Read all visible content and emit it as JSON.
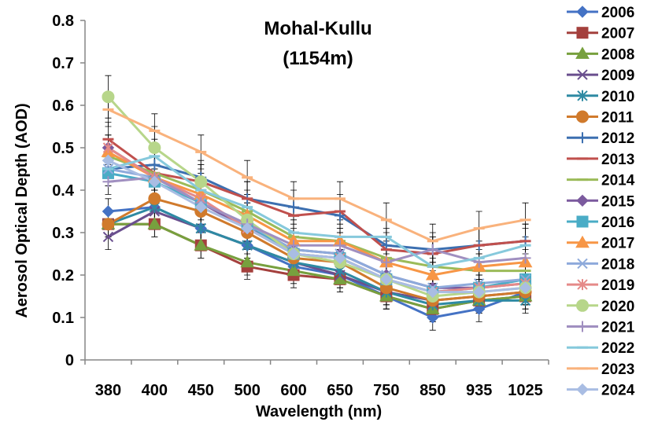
{
  "chart_data": {
    "type": "line",
    "title": "Mohal-Kullu",
    "subtitle": "(1154m)",
    "xlabel": "Wavelength (nm)",
    "ylabel": "Aerosol Optical Depth (AOD)",
    "categories": [
      "380",
      "400",
      "450",
      "500",
      "600",
      "650",
      "750",
      "850",
      "935",
      "1025"
    ],
    "ylim": [
      0,
      0.8
    ],
    "yticks": [
      "0",
      "0.1",
      "0.2",
      "0.3",
      "0.4",
      "0.5",
      "0.6",
      "0.7",
      "0.8"
    ],
    "grid": false,
    "legend_position": "right",
    "error_bars": true,
    "series": [
      {
        "name": "2006",
        "color": "#4472c4",
        "marker": "diamond",
        "values": [
          0.35,
          0.36,
          0.31,
          0.27,
          0.22,
          0.2,
          0.15,
          0.1,
          0.12,
          0.16
        ],
        "errors": [
          0.03,
          0.03,
          0.03,
          0.03,
          0.03,
          0.03,
          0.03,
          0.03,
          0.03,
          0.03
        ]
      },
      {
        "name": "2007",
        "color": "#a4403d",
        "marker": "square",
        "values": [
          0.32,
          0.32,
          0.27,
          0.22,
          0.2,
          0.19,
          0.15,
          0.12,
          0.14,
          0.15
        ],
        "errors": [
          0.03,
          0.03,
          0.03,
          0.03,
          0.03,
          0.03,
          0.03,
          0.03,
          0.03,
          0.03
        ]
      },
      {
        "name": "2008",
        "color": "#77a03e",
        "marker": "triangle",
        "values": [
          0.32,
          0.32,
          0.27,
          0.23,
          0.21,
          0.19,
          0.15,
          0.12,
          0.14,
          0.15
        ],
        "errors": [
          0.03,
          0.03,
          0.03,
          0.03,
          0.03,
          0.03,
          0.03,
          0.03,
          0.03,
          0.03
        ]
      },
      {
        "name": "2009",
        "color": "#6a4f8e",
        "marker": "x",
        "values": [
          0.29,
          0.35,
          0.31,
          0.27,
          0.23,
          0.2,
          0.16,
          0.14,
          0.15,
          0.16
        ],
        "errors": [
          0.03,
          0.03,
          0.03,
          0.03,
          0.03,
          0.03,
          0.03,
          0.03,
          0.03,
          0.03
        ]
      },
      {
        "name": "2010",
        "color": "#2e8aa3",
        "marker": "asterisk",
        "values": [
          0.32,
          0.36,
          0.31,
          0.27,
          0.23,
          0.21,
          0.16,
          0.13,
          0.14,
          0.14
        ],
        "errors": [
          0.03,
          0.03,
          0.03,
          0.03,
          0.03,
          0.03,
          0.03,
          0.03,
          0.03,
          0.03
        ]
      },
      {
        "name": "2011",
        "color": "#d07a2c",
        "marker": "circle",
        "values": [
          0.32,
          0.38,
          0.35,
          0.3,
          0.24,
          0.23,
          0.17,
          0.14,
          0.15,
          0.16
        ],
        "errors": [
          0.03,
          0.03,
          0.03,
          0.03,
          0.03,
          0.03,
          0.03,
          0.03,
          0.03,
          0.03
        ]
      },
      {
        "name": "2012",
        "color": "#3c6fb0",
        "marker": "plus",
        "values": [
          0.45,
          0.46,
          0.43,
          0.38,
          0.36,
          0.34,
          0.27,
          0.26,
          0.27,
          0.28
        ],
        "errors": [
          0.04,
          0.04,
          0.04,
          0.04,
          0.04,
          0.04,
          0.04,
          0.04,
          0.04,
          0.04
        ]
      },
      {
        "name": "2013",
        "color": "#c0504d",
        "marker": "dash",
        "values": [
          0.52,
          0.44,
          0.42,
          0.38,
          0.34,
          0.35,
          0.26,
          0.25,
          0.27,
          0.28
        ],
        "errors": [
          0.04,
          0.04,
          0.04,
          0.04,
          0.04,
          0.04,
          0.04,
          0.04,
          0.04,
          0.04
        ]
      },
      {
        "name": "2014",
        "color": "#9bbb59",
        "marker": "dash",
        "values": [
          0.48,
          0.44,
          0.4,
          0.35,
          0.29,
          0.28,
          0.24,
          0.22,
          0.21,
          0.21
        ],
        "errors": [
          0.04,
          0.04,
          0.04,
          0.04,
          0.04,
          0.04,
          0.04,
          0.04,
          0.04,
          0.04
        ]
      },
      {
        "name": "2015",
        "color": "#7b5a9e",
        "marker": "diamond",
        "values": [
          0.5,
          0.43,
          0.37,
          0.31,
          0.26,
          0.25,
          0.2,
          0.17,
          0.17,
          0.18
        ],
        "errors": [
          0.03,
          0.03,
          0.03,
          0.03,
          0.03,
          0.03,
          0.03,
          0.03,
          0.03,
          0.03
        ]
      },
      {
        "name": "2016",
        "color": "#4aacc6",
        "marker": "square",
        "values": [
          0.44,
          0.42,
          0.37,
          0.32,
          0.25,
          0.24,
          0.19,
          0.16,
          0.17,
          0.19
        ],
        "errors": [
          0.03,
          0.03,
          0.03,
          0.03,
          0.03,
          0.03,
          0.03,
          0.03,
          0.03,
          0.03
        ]
      },
      {
        "name": "2017",
        "color": "#f79646",
        "marker": "triangle",
        "values": [
          0.49,
          0.43,
          0.39,
          0.34,
          0.28,
          0.28,
          0.23,
          0.2,
          0.22,
          0.23
        ],
        "errors": [
          0.03,
          0.03,
          0.03,
          0.03,
          0.03,
          0.03,
          0.03,
          0.03,
          0.03,
          0.03
        ]
      },
      {
        "name": "2018",
        "color": "#8eaadb",
        "marker": "x",
        "values": [
          0.45,
          0.43,
          0.37,
          0.32,
          0.26,
          0.25,
          0.2,
          0.17,
          0.18,
          0.19
        ],
        "errors": [
          0.03,
          0.03,
          0.03,
          0.03,
          0.03,
          0.03,
          0.03,
          0.03,
          0.03,
          0.03
        ]
      },
      {
        "name": "2019",
        "color": "#e58a89",
        "marker": "asterisk",
        "values": [
          0.5,
          0.43,
          0.38,
          0.31,
          0.25,
          0.24,
          0.19,
          0.16,
          0.17,
          0.18
        ],
        "errors": [
          0.03,
          0.03,
          0.03,
          0.03,
          0.03,
          0.03,
          0.03,
          0.03,
          0.03,
          0.03
        ]
      },
      {
        "name": "2020",
        "color": "#b7d68a",
        "marker": "circle",
        "values": [
          0.62,
          0.5,
          0.42,
          0.33,
          0.25,
          0.23,
          0.19,
          0.15,
          0.16,
          0.17
        ],
        "errors": [
          0.05,
          0.05,
          0.04,
          0.04,
          0.03,
          0.03,
          0.03,
          0.03,
          0.03,
          0.03
        ]
      },
      {
        "name": "2021",
        "color": "#a08fc0",
        "marker": "plus",
        "values": [
          0.42,
          0.43,
          0.37,
          0.32,
          0.27,
          0.27,
          0.23,
          0.26,
          0.23,
          0.24
        ],
        "errors": [
          0.03,
          0.03,
          0.03,
          0.03,
          0.03,
          0.03,
          0.03,
          0.03,
          0.03,
          0.03
        ]
      },
      {
        "name": "2022",
        "color": "#86c9dc",
        "marker": "dash",
        "values": [
          0.45,
          0.48,
          0.4,
          0.36,
          0.3,
          0.29,
          0.29,
          0.22,
          0.24,
          0.27
        ],
        "errors": [
          0.04,
          0.04,
          0.04,
          0.04,
          0.04,
          0.04,
          0.04,
          0.04,
          0.04,
          0.04
        ]
      },
      {
        "name": "2023",
        "color": "#f9b27c",
        "marker": "dash",
        "values": [
          0.59,
          0.54,
          0.49,
          0.43,
          0.38,
          0.38,
          0.33,
          0.28,
          0.31,
          0.33
        ],
        "errors": [
          0.04,
          0.04,
          0.04,
          0.04,
          0.04,
          0.04,
          0.04,
          0.04,
          0.04,
          0.04
        ]
      },
      {
        "name": "2024",
        "color": "#a9bde3",
        "marker": "diamond",
        "values": [
          0.47,
          0.42,
          0.36,
          0.31,
          0.25,
          0.24,
          0.19,
          0.16,
          0.16,
          0.17
        ],
        "errors": [
          0.03,
          0.03,
          0.03,
          0.03,
          0.03,
          0.03,
          0.03,
          0.03,
          0.03,
          0.03
        ]
      }
    ]
  }
}
